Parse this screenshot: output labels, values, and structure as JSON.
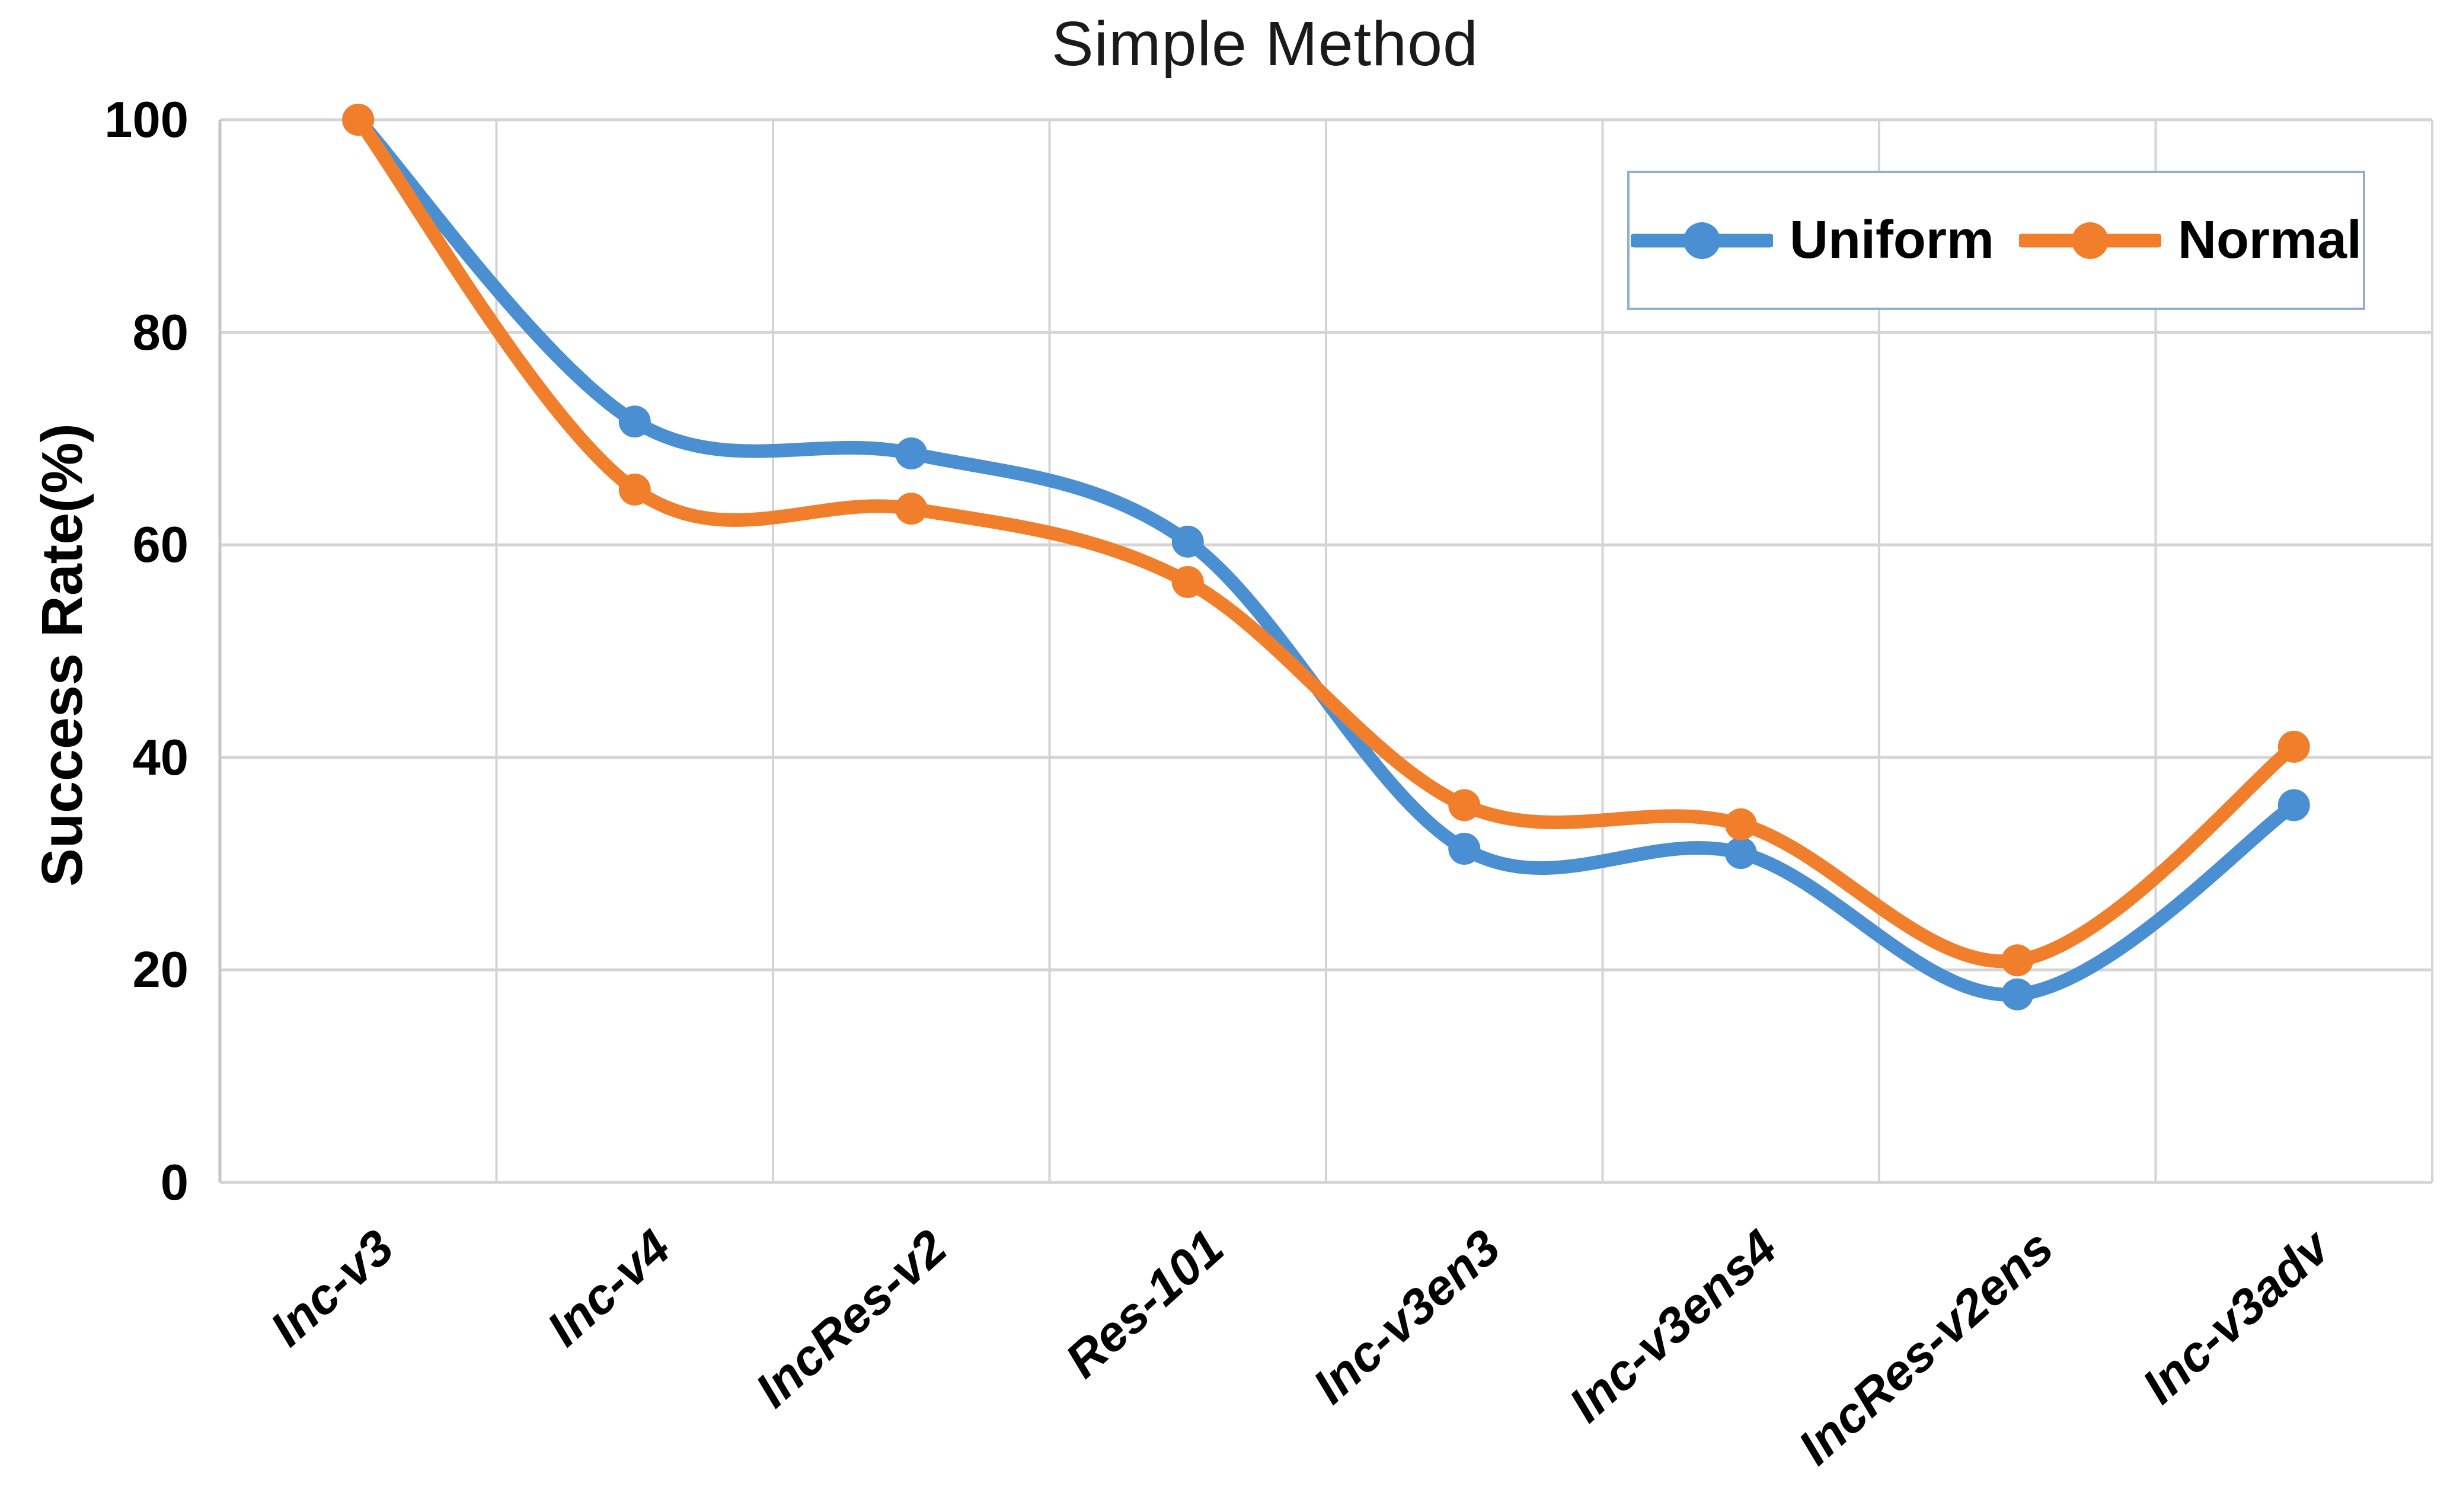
{
  "chart_data": {
    "type": "line",
    "title": "Simple Method",
    "ylabel": "Success Rate(%)",
    "xlabel": "",
    "ylim": [
      0,
      100
    ],
    "yticks": [
      0,
      20,
      40,
      60,
      80,
      100
    ],
    "grid": true,
    "smooth_lines": true,
    "legend_position": "top-right",
    "categories": [
      "Inc-v3",
      "Inc-v4",
      "IncRes-v2",
      "Res-101",
      "Inc-v3en3",
      "Inc-v3ens4",
      "IncRes-v2ens",
      "Inc-v3adv"
    ],
    "series": [
      {
        "name": "Uniform",
        "color": "#4A8FD1",
        "values": [
          100,
          71.6,
          68.6,
          60.3,
          31.4,
          31.0,
          17.7,
          35.5
        ]
      },
      {
        "name": "Normal",
        "color": "#F07E2B",
        "values": [
          100,
          65.2,
          63.4,
          56.5,
          35.5,
          33.7,
          20.9,
          41.0
        ]
      }
    ],
    "colors": {
      "gridline": "#D4D4D4",
      "axis_line": "#C6C6C6",
      "title_text": "#1A1A1A",
      "label_text": "#000000",
      "legend_border": "#93AFCE",
      "background": "#FFFFFF"
    }
  }
}
